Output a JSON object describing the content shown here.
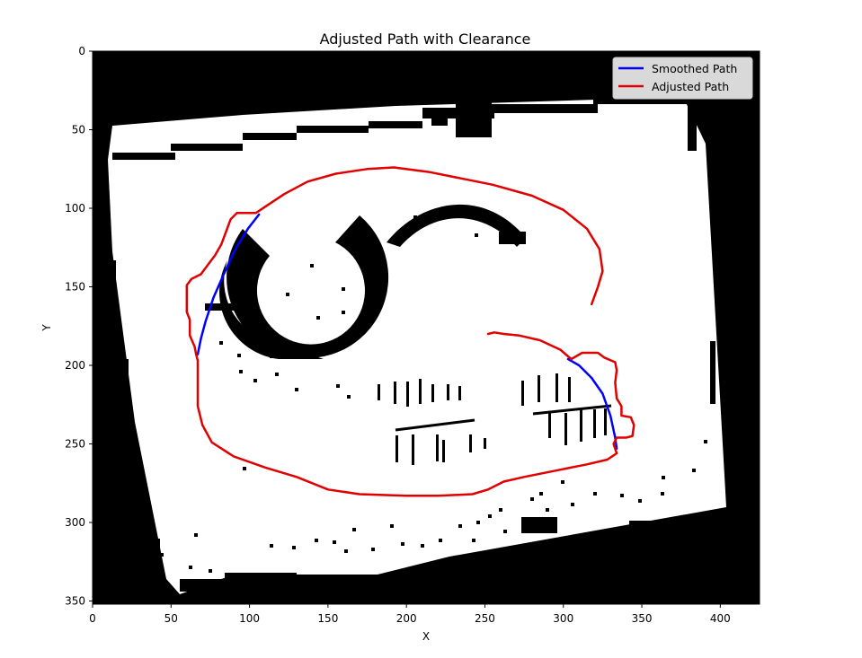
{
  "chart_data": {
    "type": "line",
    "title": "Adjusted Path with Clearance",
    "xlabel": "X",
    "ylabel": "Y",
    "xlim": [
      0,
      425
    ],
    "ylim": [
      352,
      0
    ],
    "y_inverted": true,
    "x_ticks": [
      0,
      50,
      100,
      150,
      200,
      250,
      300,
      350,
      400
    ],
    "y_ticks": [
      0,
      50,
      100,
      150,
      200,
      250,
      300,
      350
    ],
    "background": "binary occupancy grid map (black = occupied, white = free)",
    "legend": {
      "placement": "top-right"
    },
    "series": [
      {
        "name": "Smoothed Path",
        "color": "#0000ff",
        "segments": [
          [
            [
              106,
              104
            ],
            [
              99,
              113
            ],
            [
              91,
              126
            ],
            [
              84,
              141
            ],
            [
              77,
              157
            ],
            [
              72,
              172
            ],
            [
              69,
              183
            ],
            [
              67,
              193
            ]
          ],
          [
            [
              303,
              196
            ],
            [
              310,
              200
            ],
            [
              318,
              208
            ],
            [
              325,
              218
            ],
            [
              330,
              232
            ],
            [
              333,
              246
            ],
            [
              334,
              253
            ]
          ]
        ]
      },
      {
        "name": "Adjusted Path",
        "color": "#e00000",
        "points": [
          [
            318,
            161
          ],
          [
            322,
            150
          ],
          [
            325,
            140
          ],
          [
            323,
            126
          ],
          [
            315,
            113
          ],
          [
            300,
            101
          ],
          [
            280,
            92
          ],
          [
            255,
            85
          ],
          [
            235,
            81
          ],
          [
            215,
            77
          ],
          [
            192,
            74
          ],
          [
            175,
            75
          ],
          [
            155,
            78
          ],
          [
            137,
            83
          ],
          [
            122,
            91
          ],
          [
            110,
            99
          ],
          [
            104,
            103
          ],
          [
            92,
            103
          ],
          [
            88,
            107
          ],
          [
            85,
            115
          ],
          [
            82,
            123
          ],
          [
            78,
            130
          ],
          [
            75,
            134
          ],
          [
            69,
            142
          ],
          [
            63,
            145
          ],
          [
            60,
            149
          ],
          [
            60,
            166
          ],
          [
            62,
            171
          ],
          [
            62,
            181
          ],
          [
            65,
            188
          ],
          [
            66,
            193
          ],
          [
            67,
            197
          ],
          [
            67,
            215
          ],
          [
            67,
            226
          ],
          [
            70,
            238
          ],
          [
            76,
            249
          ],
          [
            90,
            258
          ],
          [
            110,
            265
          ],
          [
            130,
            271
          ],
          [
            150,
            279
          ],
          [
            170,
            282
          ],
          [
            200,
            283
          ],
          [
            220,
            283
          ],
          [
            242,
            282
          ],
          [
            252,
            279
          ],
          [
            262,
            274
          ],
          [
            275,
            271
          ],
          [
            295,
            267
          ],
          [
            315,
            263
          ],
          [
            328,
            260
          ],
          [
            334,
            256
          ],
          [
            332,
            250
          ],
          [
            334,
            246
          ],
          [
            340,
            246
          ],
          [
            344,
            245
          ],
          [
            345,
            238
          ],
          [
            343,
            233
          ],
          [
            337,
            232
          ],
          [
            337,
            226
          ],
          [
            334,
            221
          ],
          [
            333,
            211
          ],
          [
            334,
            203
          ],
          [
            333,
            198
          ],
          [
            326,
            195
          ],
          [
            322,
            192
          ],
          [
            312,
            192
          ],
          [
            305,
            196
          ],
          [
            298,
            190
          ],
          [
            285,
            184
          ],
          [
            272,
            181
          ],
          [
            262,
            180
          ],
          [
            256,
            179
          ],
          [
            252,
            180
          ]
        ]
      }
    ]
  }
}
